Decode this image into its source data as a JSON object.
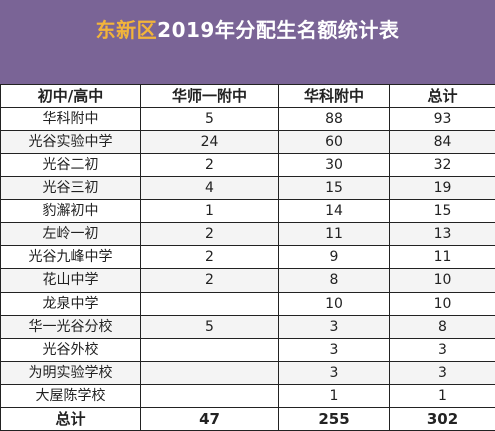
{
  "title": {
    "highlight": "东新区",
    "rest": "2019年分配生名额统计表"
  },
  "colors": {
    "banner": "#7a6496",
    "title_highlight": "#f2b43a",
    "title_text": "#ffffff"
  },
  "headers": [
    "初中/高中",
    "华师一附中",
    "华科附中",
    "总计"
  ],
  "rows": [
    [
      "华科附中",
      "5",
      "88",
      "93"
    ],
    [
      "光谷实验中学",
      "24",
      "60",
      "84"
    ],
    [
      "光谷二初",
      "2",
      "30",
      "32"
    ],
    [
      "光谷三初",
      "4",
      "15",
      "19"
    ],
    [
      "豹澥初中",
      "1",
      "14",
      "15"
    ],
    [
      "左岭一初",
      "2",
      "11",
      "13"
    ],
    [
      "光谷九峰中学",
      "2",
      "9",
      "11"
    ],
    [
      "花山中学",
      "2",
      "8",
      "10"
    ],
    [
      "龙泉中学",
      "",
      "10",
      "10"
    ],
    [
      "华一光谷分校",
      "5",
      "3",
      "8"
    ],
    [
      "光谷外校",
      "",
      "3",
      "3"
    ],
    [
      "为明实验学校",
      "",
      "3",
      "3"
    ],
    [
      "大屋陈学校",
      "",
      "1",
      "1"
    ]
  ],
  "total": [
    "总计",
    "47",
    "255",
    "302"
  ]
}
